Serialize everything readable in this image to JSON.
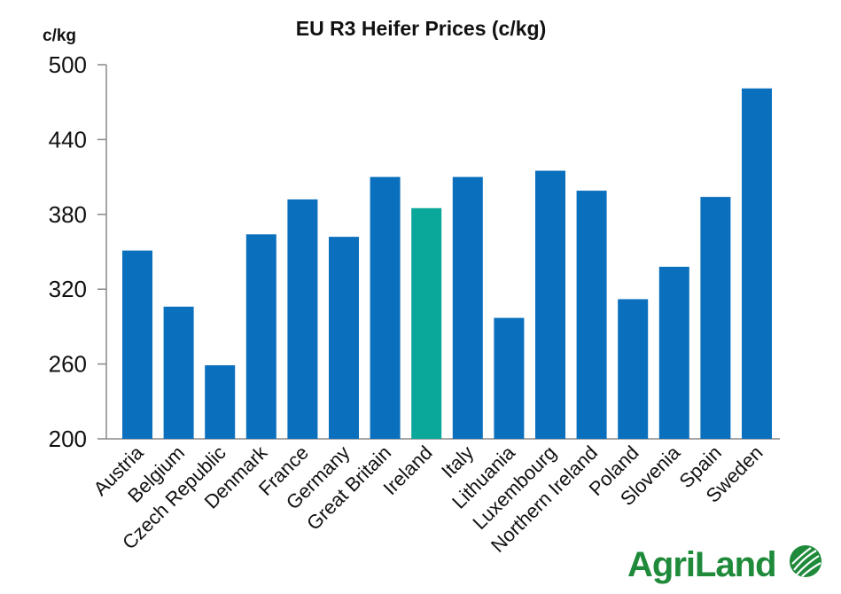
{
  "chart_data": {
    "type": "bar",
    "title": "EU R3 Heifer Prices (c/kg)",
    "ylabel": "c/kg",
    "xlabel": "",
    "ylim": [
      200,
      500
    ],
    "yticks": [
      "200",
      "260",
      "320",
      "380",
      "440",
      "500"
    ],
    "grid": false,
    "categories": [
      "Austria",
      "Belgium",
      "Czech Republic",
      "Denmark",
      "France",
      "Germany",
      "Great Britain",
      "Ireland",
      "Italy",
      "Lithuania",
      "Luxembourg",
      "Northern Ireland",
      "Poland",
      "Slovenia",
      "Spain",
      "Sweden"
    ],
    "values": [
      351,
      306,
      259,
      364,
      392,
      362,
      410,
      385,
      410,
      297,
      415,
      399,
      312,
      338,
      394,
      481
    ],
    "bar_color": "#0a6fbd",
    "highlight": {
      "category": "Ireland",
      "color": "#0aa79b"
    }
  },
  "logo": {
    "text": "AgriLand",
    "color": "#1e8a3a"
  }
}
